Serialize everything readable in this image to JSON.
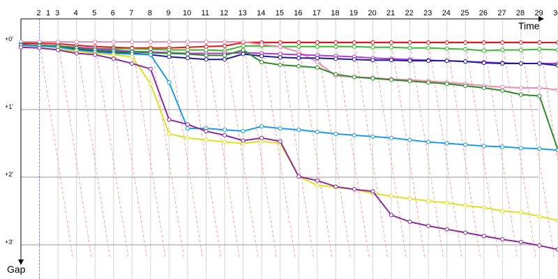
{
  "chart_data": {
    "type": "line",
    "x_axis": {
      "label": "Time",
      "ticks": [
        "1",
        "2",
        "3",
        "4",
        "5",
        "6",
        "7",
        "8",
        "9",
        "10",
        "11",
        "12",
        "13",
        "14",
        "15",
        "16",
        "17",
        "18",
        "19",
        "20",
        "21",
        "22",
        "23",
        "24",
        "25",
        "26",
        "27",
        "28",
        "29",
        "30"
      ],
      "range": [
        1,
        30
      ]
    },
    "y_axis": {
      "label": "Gap",
      "ticks": [
        "+0'",
        "+1'",
        "+2'",
        "+3'"
      ],
      "range": [
        0,
        3
      ],
      "direction": "down"
    },
    "grid": true,
    "legend": "none",
    "series": [
      {
        "color": "#e01818",
        "values": [
          0.02,
          0.02,
          0.03,
          0.05,
          0.07,
          0.08,
          0.09,
          0.09,
          0.09,
          0.08,
          0.07,
          0.06,
          0.01,
          0.01,
          0.01,
          0.01,
          0.01,
          0.01,
          0.01,
          0.01,
          0.01,
          0.01,
          0.01,
          0.01,
          0.01,
          0.01,
          0.01,
          0.01,
          0.01,
          0.01
        ]
      },
      {
        "color": "#3ab82e",
        "values": [
          0.04,
          0.05,
          0.06,
          0.08,
          0.1,
          0.1,
          0.1,
          0.11,
          0.12,
          0.12,
          0.12,
          0.13,
          0.06,
          0.06,
          0.07,
          0.07,
          0.07,
          0.07,
          0.07,
          0.08,
          0.08,
          0.09,
          0.09,
          0.1,
          0.11,
          0.13,
          0.12,
          0.12,
          0.11,
          0.12
        ]
      },
      {
        "color": "#f08ab0",
        "values": [
          0.0,
          0.0,
          0.0,
          0.0,
          0.0,
          0.0,
          0.0,
          0.0,
          0.0,
          0.0,
          0.0,
          0.0,
          0.0,
          0.04,
          0.07,
          0.15,
          0.3,
          0.5,
          0.52,
          0.53,
          0.55,
          0.56,
          0.58,
          0.6,
          0.62,
          0.65,
          0.67,
          0.68,
          0.68,
          0.71
        ]
      },
      {
        "color": "#b03ad0",
        "values": [
          0.05,
          0.06,
          0.07,
          0.08,
          0.1,
          0.12,
          0.14,
          0.15,
          0.16,
          0.17,
          0.17,
          0.17,
          0.16,
          0.17,
          0.18,
          0.19,
          0.2,
          0.21,
          0.22,
          0.24,
          0.25,
          0.26,
          0.27,
          0.28,
          0.29,
          0.3,
          0.31,
          0.32,
          0.32,
          0.32
        ]
      },
      {
        "color": "#1a1aa0",
        "values": [
          0.05,
          0.05,
          0.07,
          0.11,
          0.14,
          0.16,
          0.17,
          0.19,
          0.22,
          0.24,
          0.26,
          0.26,
          0.18,
          0.21,
          0.23,
          0.24,
          0.24,
          0.25,
          0.26,
          0.27,
          0.27,
          0.28,
          0.28,
          0.28,
          0.29,
          0.31,
          0.32,
          0.32,
          0.32,
          0.35
        ]
      },
      {
        "color": "#2a8a2a",
        "values": [
          0.04,
          0.05,
          0.06,
          0.09,
          0.12,
          0.14,
          0.15,
          0.16,
          0.17,
          0.18,
          0.2,
          0.2,
          0.12,
          0.3,
          0.34,
          0.36,
          0.38,
          0.48,
          0.52,
          0.54,
          0.56,
          0.58,
          0.6,
          0.62,
          0.65,
          0.68,
          0.72,
          0.78,
          0.8,
          1.6
        ]
      },
      {
        "color": "#1a9ae8",
        "values": [
          0.05,
          0.06,
          0.08,
          0.12,
          0.15,
          0.17,
          0.18,
          0.19,
          0.6,
          1.28,
          1.28,
          1.3,
          1.32,
          1.25,
          1.28,
          1.3,
          1.33,
          1.36,
          1.38,
          1.4,
          1.42,
          1.45,
          1.48,
          1.5,
          1.52,
          1.54,
          1.55,
          1.57,
          1.58,
          1.6
        ]
      },
      {
        "color": "#e0e020",
        "values": [
          0.08,
          0.09,
          0.11,
          0.14,
          0.17,
          0.19,
          0.22,
          0.62,
          1.36,
          1.42,
          1.45,
          1.48,
          1.5,
          1.47,
          1.5,
          1.99,
          2.12,
          2.15,
          2.18,
          2.24,
          2.28,
          2.32,
          2.35,
          2.38,
          2.42,
          2.45,
          2.5,
          2.52,
          2.58,
          2.64
        ]
      },
      {
        "color": "#8a2a9a",
        "values": [
          0.08,
          0.09,
          0.12,
          0.17,
          0.19,
          0.25,
          0.32,
          0.4,
          1.15,
          1.22,
          1.32,
          1.38,
          1.46,
          1.42,
          1.47,
          1.99,
          2.05,
          2.14,
          2.18,
          2.21,
          2.56,
          2.66,
          2.72,
          2.77,
          2.82,
          2.87,
          2.92,
          2.96,
          3.01,
          3.07
        ]
      }
    ]
  }
}
